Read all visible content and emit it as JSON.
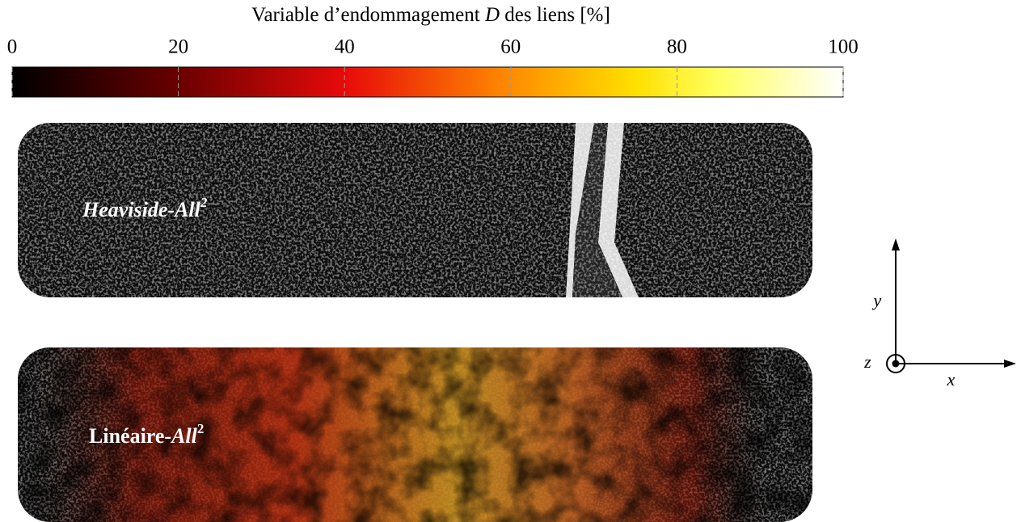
{
  "colorbar": {
    "title_start": "Variable d’endommagement",
    "title_symbol": "D",
    "title_end": "des liens [%]",
    "range": [
      0,
      100
    ],
    "ticks": [
      0,
      20,
      40,
      60,
      80,
      100
    ]
  },
  "panels": [
    {
      "label": "Heaviside-All",
      "exponent": "2"
    },
    {
      "label_upright": "Linéaire-",
      "label": "All",
      "exponent": "2"
    }
  ],
  "axes": {
    "x": "x⃗",
    "y": "y⃗",
    "z": "z⃗"
  }
}
